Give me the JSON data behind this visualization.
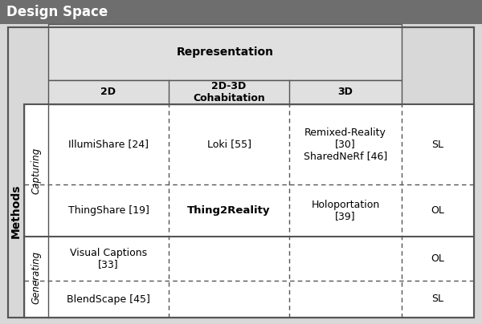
{
  "title": "Design Space",
  "title_bg": "#6e6e6e",
  "title_color": "#ffffff",
  "outer_bg": "#d8d8d8",
  "inner_bg": "#ffffff",
  "header_bg": "#e0e0e0",
  "representation_label": "Representation",
  "methods_label": "Methods",
  "col_headers": [
    "2D",
    "2D-3D\nCohabitation",
    "3D"
  ],
  "row_cat_labels": [
    "Capturing",
    "Generating"
  ],
  "rows": [
    [
      "IllumiShare [24]",
      "Loki [55]",
      "Remixed-Reality\n[30]\nSharedNeRf [46]",
      "SL"
    ],
    [
      "ThingShare [19]",
      "Thing2Reality",
      "Holoportation\n[39]",
      "OL"
    ],
    [
      "Visual Captions\n[33]",
      "",
      "",
      "OL"
    ],
    [
      "BlendScape [45]",
      "",
      "",
      "SL"
    ]
  ],
  "figsize": [
    6.0,
    4.04
  ],
  "dpi": 100
}
